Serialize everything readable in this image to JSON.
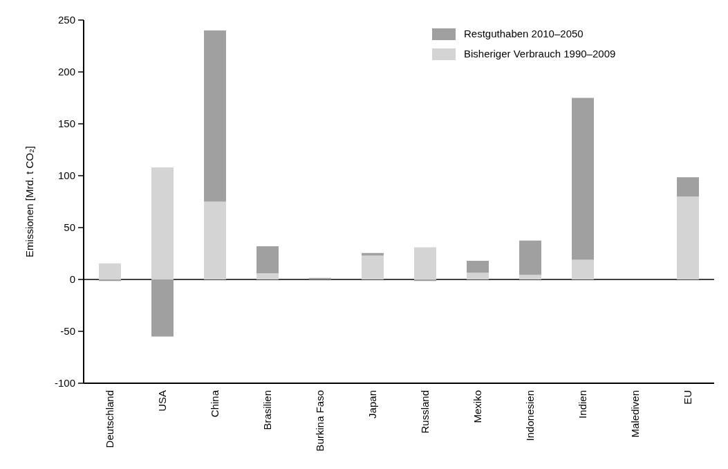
{
  "chart_data": {
    "type": "bar",
    "stacked": true,
    "ylabel": "Emissionen [Mrd. t CO₂]",
    "categories": [
      "Deutschland",
      "USA",
      "China",
      "Brasilien",
      "Burkina Faso",
      "Japan",
      "Russland",
      "Mexiko",
      "Indonesien",
      "Indien",
      "Malediven",
      "EU"
    ],
    "series": [
      {
        "name": "Bisheriger Verbrauch 1990–2009",
        "color": "#d4d4d4",
        "values": [
          15.5,
          108,
          75,
          6,
          0,
          23,
          31,
          6.5,
          4.5,
          19,
          0,
          80
        ]
      },
      {
        "name": "Restguthaben 2010–2050",
        "color": "#a0a0a0",
        "values": [
          -1.5,
          -55,
          165,
          26,
          1.5,
          2.5,
          -1.5,
          11.5,
          33,
          156,
          0,
          18.5
        ]
      }
    ],
    "ylim": [
      -100,
      250
    ],
    "yticks": [
      -100,
      -50,
      0,
      50,
      100,
      150,
      200,
      250
    ],
    "legend": "top right",
    "ref_lines": [
      {
        "axis": "y",
        "value": 0,
        "color": "#000000"
      }
    ]
  }
}
